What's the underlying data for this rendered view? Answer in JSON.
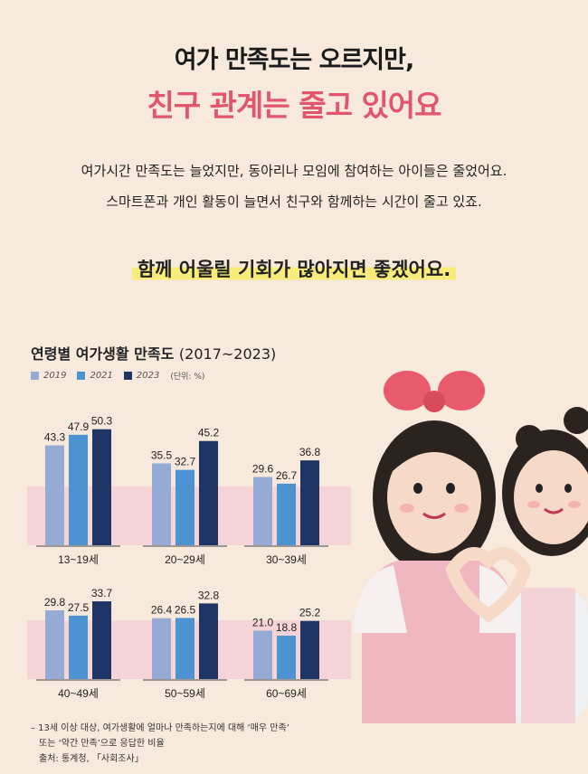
{
  "headline": {
    "line1": "여가 만족도는 오르지만,",
    "line2": "친구 관계는 줄고 있어요"
  },
  "description": {
    "line1": "여가시간 만족도는 늘었지만, 동아리나 모임에 참여하는 아이들은 줄었어요.",
    "line2": "스마트폰과 개인 활동이 늘면서 친구와 함께하는 시간이 줄고 있죠."
  },
  "highlight": "함께 어울릴 기회가 많아지면 좋겠어요.",
  "chart_data": {
    "type": "bar",
    "title": "연령별 여가생활 만족도",
    "title_sub": "(2017~2023)",
    "unit": "(단위: %)",
    "categories": [
      "13~19세",
      "20~29세",
      "30~39세",
      "40~49세",
      "50~59세",
      "60~69세"
    ],
    "series": [
      {
        "name": "2019",
        "color": "#95aad4",
        "values": [
          43.3,
          35.5,
          29.6,
          29.8,
          26.4,
          21.0
        ]
      },
      {
        "name": "2021",
        "color": "#4d93d3",
        "values": [
          47.9,
          32.7,
          26.7,
          27.5,
          26.5,
          18.8
        ]
      },
      {
        "name": "2023",
        "color": "#1e3566",
        "values": [
          50.3,
          45.2,
          36.8,
          33.7,
          32.8,
          25.2
        ]
      }
    ],
    "value_labels": [
      [
        "43.3",
        "47.9",
        "50.3"
      ],
      [
        "35.5",
        "32.7",
        "45.2"
      ],
      [
        "29.6",
        "26.7",
        "36.8"
      ],
      [
        "29.8",
        "27.5",
        "33.7"
      ],
      [
        "26.4",
        "26.5",
        "32.8"
      ],
      [
        "21.0",
        "18.8",
        "25.2"
      ]
    ],
    "band_color": "#f5d3d6",
    "ylim": [
      0,
      60
    ]
  },
  "notes": {
    "line1": "– 13세 이상 대상, 여가생활에 얼마나 만족하는지에 대해 ‘매우 만족’",
    "line2": "또는 ‘약간 만족’으로 응답한 비율",
    "line3": "출처: 통계청, 「사회조사」"
  },
  "colors": {
    "background": "#f7e9db",
    "headline_accent": "#e2566d",
    "highlight": "#f8ec7a"
  },
  "illustration": {
    "icon": "two-girls-heart-hands-illustration"
  }
}
